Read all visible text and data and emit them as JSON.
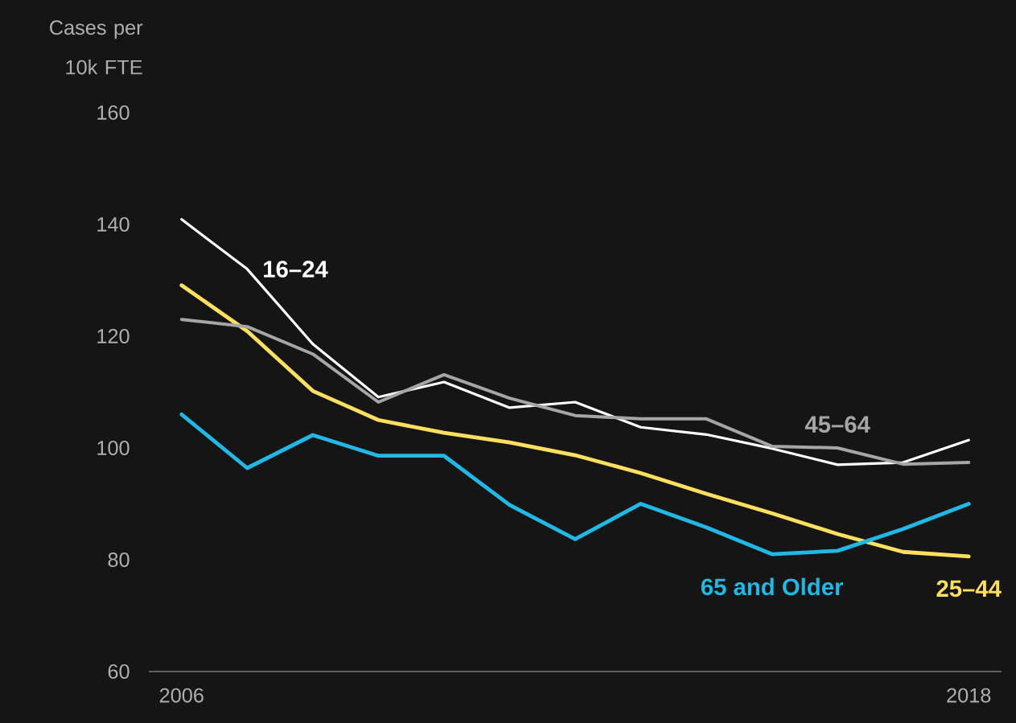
{
  "chart_data": {
    "type": "line",
    "ylabel": "Cases per 10k FTE",
    "x": [
      2006,
      2007,
      2008,
      2009,
      2010,
      2011,
      2012,
      2013,
      2014,
      2015,
      2016,
      2017,
      2018
    ],
    "series": [
      {
        "name": "16–24",
        "color": "#ffffff",
        "values": [
          140.9,
          132.0,
          118.6,
          109.1,
          111.8,
          107.2,
          108.2,
          103.7,
          102.4,
          99.9,
          97.0,
          97.4,
          101.4
        ]
      },
      {
        "name": "25–44",
        "color": "#ffdf5f",
        "values": [
          129.1,
          120.9,
          110.2,
          105.0,
          102.7,
          101.0,
          98.7,
          95.5,
          91.8,
          88.3,
          84.6,
          81.4,
          80.6
        ]
      },
      {
        "name": "45–64",
        "color": "#a6a6a6",
        "values": [
          123.0,
          121.7,
          116.8,
          108.2,
          113.1,
          108.9,
          105.8,
          105.2,
          105.2,
          100.3,
          100.0,
          97.1,
          97.4
        ]
      },
      {
        "name": "65 and Older",
        "color": "#22b8e6",
        "values": [
          106.0,
          96.4,
          102.3,
          98.6,
          98.6,
          89.8,
          83.7,
          90.0,
          85.8,
          81.0,
          81.6,
          85.5,
          90.0
        ]
      }
    ],
    "xlim": [
      2005.5,
      2018.5
    ],
    "ylim": [
      60,
      160
    ],
    "xticks": [
      2006,
      2018
    ],
    "yticks": [
      60,
      80,
      100,
      120,
      140,
      160
    ],
    "grid": false,
    "legend": false,
    "line_style": "solid"
  }
}
